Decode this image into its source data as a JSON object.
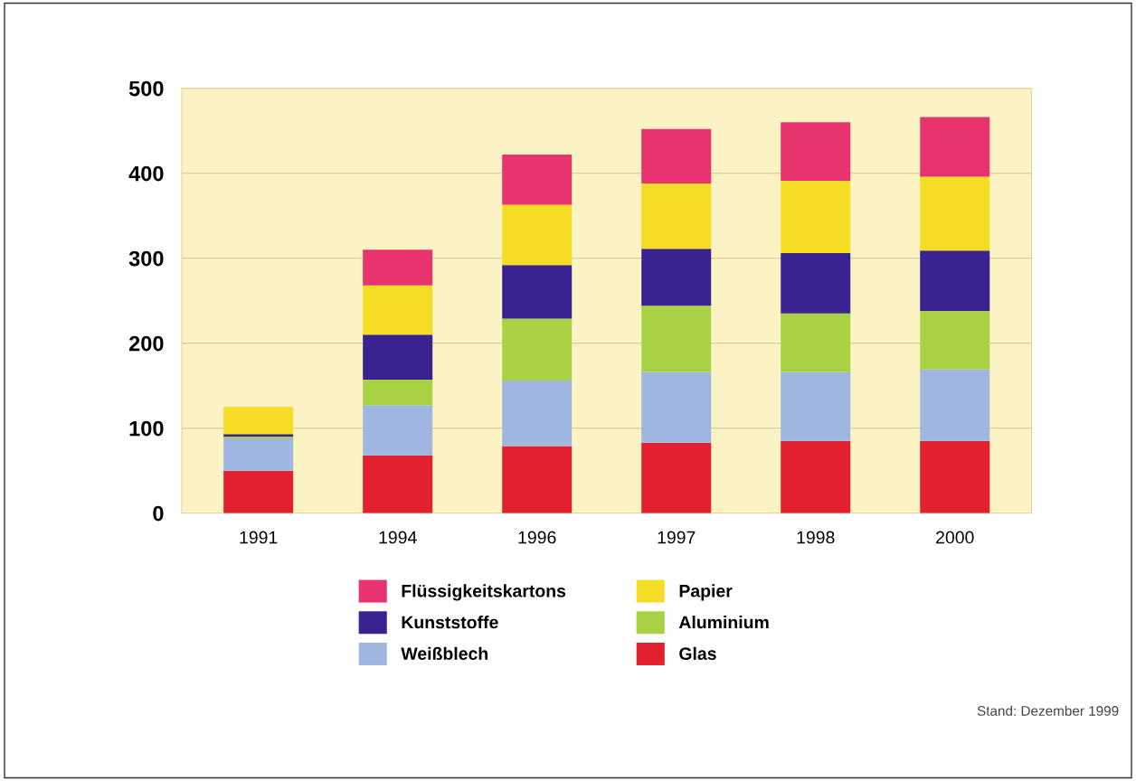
{
  "chart_data": {
    "type": "bar",
    "stacked": true,
    "categories": [
      "1991",
      "1994",
      "1996",
      "1997",
      "1998",
      "2000"
    ],
    "series": [
      {
        "name": "Glas",
        "color": "#e3202f",
        "values": [
          50,
          68,
          79,
          83,
          85,
          85
        ]
      },
      {
        "name": "Weißblech",
        "color": "#9fb6e0",
        "values": [
          38,
          59,
          77,
          83,
          81,
          84
        ]
      },
      {
        "name": "Aluminium",
        "color": "#a8d244",
        "values": [
          2,
          30,
          73,
          78,
          69,
          69
        ]
      },
      {
        "name": "Kunststoffe",
        "color": "#3a2390",
        "values": [
          3,
          53,
          63,
          67,
          71,
          71
        ]
      },
      {
        "name": "Papier",
        "color": "#f5dc25",
        "values": [
          32,
          58,
          71,
          77,
          85,
          87
        ]
      },
      {
        "name": "Flüssigkeitskartons",
        "color": "#e8336f",
        "values": [
          null,
          42,
          59,
          64,
          69,
          70
        ]
      }
    ],
    "ylim": [
      0,
      500
    ],
    "yticks": [
      0,
      100,
      200,
      300,
      400,
      500
    ],
    "grid": "y",
    "legend": "bottom",
    "annotations": [
      "Stand: Dezember 1999"
    ]
  }
}
